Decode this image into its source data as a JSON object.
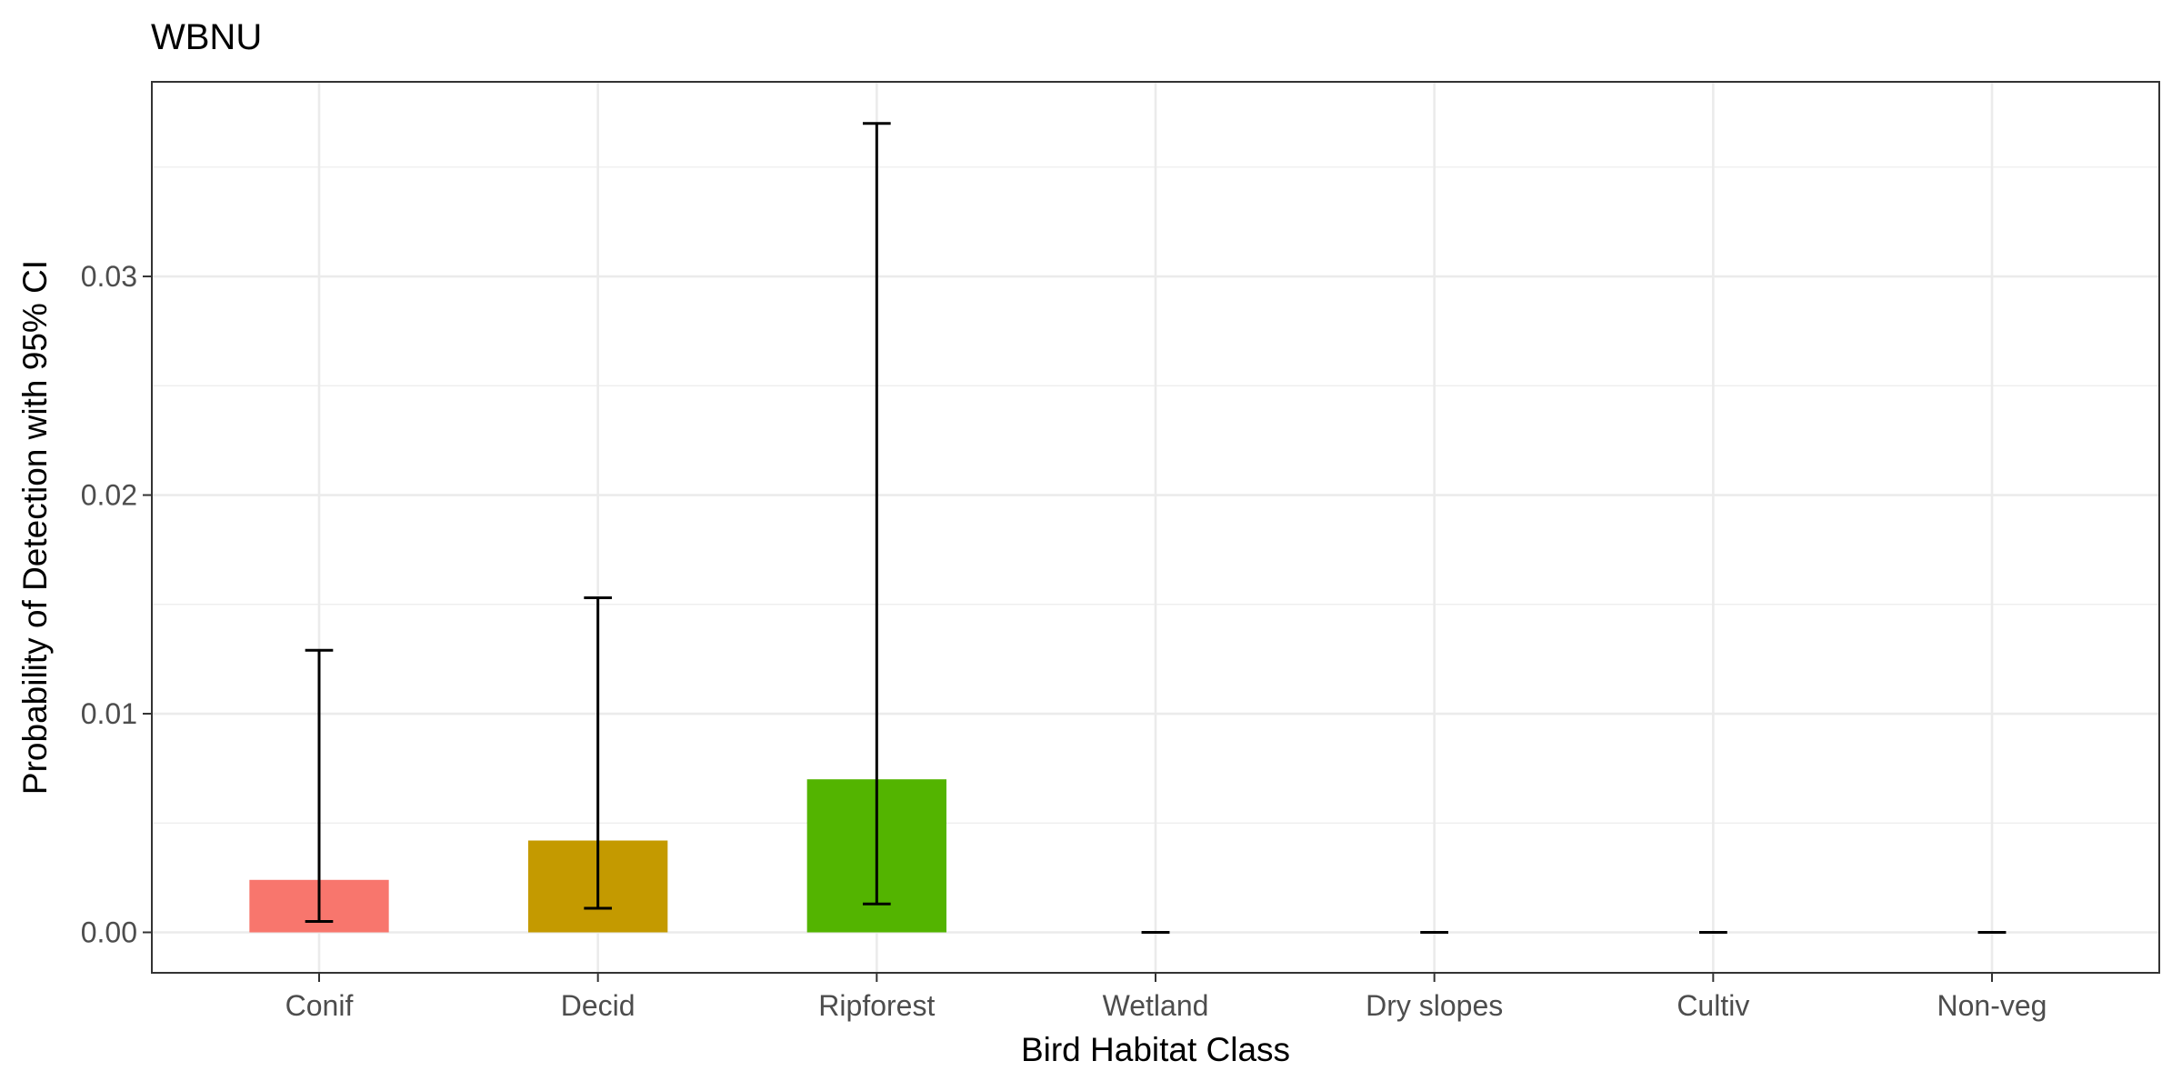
{
  "chart_data": {
    "type": "bar",
    "title": "WBNU",
    "xlabel": "Bird Habitat Class",
    "ylabel": "Probability of Detection with 95% CI",
    "categories": [
      "Conif",
      "Decid",
      "Ripforest",
      "Wetland",
      "Dry slopes",
      "Cultiv",
      "Non-veg"
    ],
    "values": [
      0.0024,
      0.0042,
      0.007,
      0.0,
      0.0,
      0.0,
      0.0
    ],
    "ci_lower": [
      0.0005,
      0.0011,
      0.0013,
      0.0,
      0.0,
      0.0,
      0.0
    ],
    "ci_upper": [
      0.0129,
      0.0153,
      0.037,
      0.0,
      0.0,
      0.0,
      0.0
    ],
    "colors": [
      "#F8766D",
      "#C49A00",
      "#53B400",
      "#00C094",
      "#00B6EB",
      "#A58AFF",
      "#FB61D7"
    ],
    "ylim": [
      -0.00185,
      0.0389
    ],
    "yticks": [
      0.0,
      0.01,
      0.02,
      0.03
    ],
    "ytick_labels": [
      "0.00",
      "0.01",
      "0.02",
      "0.03"
    ],
    "grid": true,
    "legend": "none"
  }
}
